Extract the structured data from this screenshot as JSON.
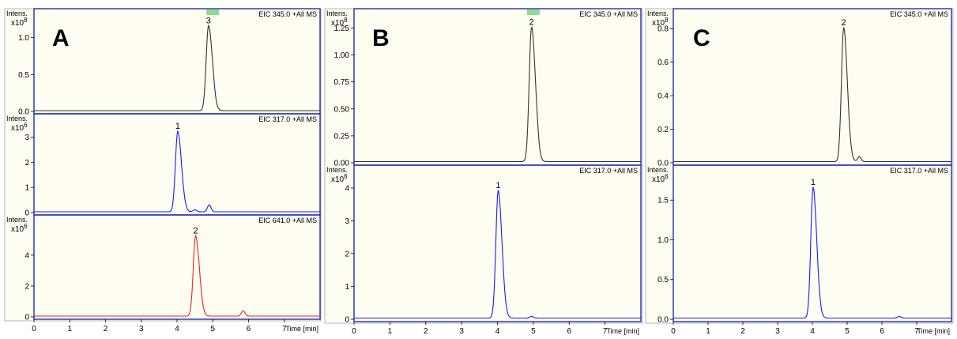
{
  "figure": {
    "background": "#fdfdf1",
    "frame_color": "#1f2db3"
  },
  "panels": [
    {
      "label": "A",
      "x_axis_label": "Time [min]",
      "xlim": [
        0,
        8
      ],
      "x_ticks": [
        0,
        1,
        2,
        3,
        4,
        5,
        6,
        7
      ],
      "marker_color": "#8fdc8f",
      "marker_x": 5.0,
      "traces": [
        {
          "title": "EIC 345.0 +All MS",
          "intensity_label": "Intens.",
          "exponent_base": "x10",
          "exponent_power": "8",
          "color": "#333333",
          "ylim": [
            0,
            1.35
          ],
          "y_ticks": [
            0.0,
            0.5,
            1.0
          ],
          "y_tick_labels": [
            "0.0",
            "0.5",
            "1.0"
          ],
          "peaks": [
            {
              "rt": 4.88,
              "height": 1.15,
              "label": "3"
            }
          ],
          "minor_peaks": [
            {
              "rt": 5.0,
              "height": 0.04
            }
          ]
        },
        {
          "title": "EIC 317.0 +All MS",
          "intensity_label": "Intens.",
          "exponent_base": "x10",
          "exponent_power": "6",
          "color": "#1a1aff",
          "ylim": [
            0,
            3.8
          ],
          "y_ticks": [
            0,
            1,
            2,
            3
          ],
          "y_tick_labels": [
            "0",
            "1",
            "2",
            "3"
          ],
          "peaks": [
            {
              "rt": 4.02,
              "height": 3.2,
              "label": "1"
            }
          ],
          "minor_peaks": [
            {
              "rt": 4.9,
              "height": 0.28
            },
            {
              "rt": 4.5,
              "height": 0.08
            }
          ]
        },
        {
          "title": "EIC 641.0 +All MS",
          "intensity_label": "Intens.",
          "exponent_base": "x10",
          "exponent_power": "6",
          "color": "#ee2222",
          "ylim": [
            0,
            6.4
          ],
          "y_ticks": [
            0,
            2,
            4
          ],
          "y_tick_labels": [
            "0",
            "2",
            "4"
          ],
          "peaks": [
            {
              "rt": 4.52,
              "height": 5.2,
              "label": "2"
            }
          ],
          "minor_peaks": [
            {
              "rt": 5.85,
              "height": 0.35
            }
          ]
        }
      ]
    },
    {
      "label": "B",
      "x_axis_label": "Time [min]",
      "xlim": [
        0,
        8
      ],
      "x_ticks": [
        0,
        1,
        2,
        3,
        4,
        5,
        6,
        7
      ],
      "marker_color": "#8fdc8f",
      "marker_x": 5.0,
      "traces": [
        {
          "title": "EIC 345.0 +All MS",
          "intensity_label": "Intens.",
          "exponent_base": "x10",
          "exponent_power": "8",
          "color": "#333333",
          "ylim": [
            0,
            1.4
          ],
          "y_ticks": [
            0.0,
            0.25,
            0.5,
            0.75,
            1.0,
            1.25
          ],
          "y_tick_labels": [
            "0.00",
            "0.25",
            "0.50",
            "0.75",
            "1.00",
            "1.25"
          ],
          "peaks": [
            {
              "rt": 4.95,
              "height": 1.25,
              "label": "2"
            }
          ],
          "minor_peaks": [
            {
              "rt": 5.1,
              "height": 0.05
            }
          ]
        },
        {
          "title": "EIC 317.0 +All MS",
          "intensity_label": "Intens.",
          "exponent_base": "x10",
          "exponent_power": "6",
          "color": "#1a1aff",
          "ylim": [
            0,
            4.6
          ],
          "y_ticks": [
            0,
            1,
            2,
            3,
            4
          ],
          "y_tick_labels": [
            "0",
            "1",
            "2",
            "3",
            "4"
          ],
          "peaks": [
            {
              "rt": 4.02,
              "height": 3.9,
              "label": "1"
            }
          ],
          "minor_peaks": [
            {
              "rt": 4.95,
              "height": 0.05
            }
          ]
        }
      ]
    },
    {
      "label": "C",
      "x_axis_label": "Time [min]",
      "xlim": [
        0,
        8
      ],
      "x_ticks": [
        0,
        1,
        2,
        3,
        4,
        5,
        6,
        7
      ],
      "marker_color": "",
      "marker_x": null,
      "traces": [
        {
          "title": "EIC 345.0 +All MS",
          "intensity_label": "Intens.",
          "exponent_base": "x10",
          "exponent_power": "8",
          "color": "#333333",
          "ylim": [
            0,
            0.9
          ],
          "y_ticks": [
            0.0,
            0.2,
            0.4,
            0.6,
            0.8
          ],
          "y_tick_labels": [
            "0.0",
            "0.2",
            "0.4",
            "0.6",
            "0.8"
          ],
          "peaks": [
            {
              "rt": 4.9,
              "height": 0.8,
              "label": "2"
            }
          ],
          "minor_peaks": [
            {
              "rt": 5.35,
              "height": 0.03
            }
          ]
        },
        {
          "title": "EIC 317.0 +All MS",
          "intensity_label": "Intens.",
          "exponent_base": "x10",
          "exponent_power": "6",
          "color": "#1a1aff",
          "ylim": [
            0,
            1.9
          ],
          "y_ticks": [
            0.0,
            0.5,
            1.0,
            1.5
          ],
          "y_tick_labels": [
            "0.0",
            "0.5",
            "1.0",
            "1.5"
          ],
          "peaks": [
            {
              "rt": 4.02,
              "height": 1.65,
              "label": "1"
            }
          ],
          "minor_peaks": [
            {
              "rt": 6.5,
              "height": 0.02
            }
          ]
        }
      ]
    }
  ],
  "chart_data": [
    {
      "type": "line",
      "panel": "A",
      "xlabel": "Time [min]",
      "xlim": [
        0,
        8
      ],
      "series": [
        {
          "name": "EIC 345.0 +All MS",
          "units": "x10^8",
          "peak_rt": 4.88,
          "peak_height": 1.15,
          "peak_label": "3"
        },
        {
          "name": "EIC 317.0 +All MS",
          "units": "x10^6",
          "peak_rt": 4.02,
          "peak_height": 3.2,
          "peak_label": "1"
        },
        {
          "name": "EIC 641.0 +All MS",
          "units": "x10^6",
          "peak_rt": 4.52,
          "peak_height": 5.2,
          "peak_label": "2"
        }
      ]
    },
    {
      "type": "line",
      "panel": "B",
      "xlabel": "Time [min]",
      "xlim": [
        0,
        8
      ],
      "series": [
        {
          "name": "EIC 345.0 +All MS",
          "units": "x10^8",
          "peak_rt": 4.95,
          "peak_height": 1.25,
          "peak_label": "2"
        },
        {
          "name": "EIC 317.0 +All MS",
          "units": "x10^6",
          "peak_rt": 4.02,
          "peak_height": 3.9,
          "peak_label": "1"
        }
      ]
    },
    {
      "type": "line",
      "panel": "C",
      "xlabel": "Time [min]",
      "xlim": [
        0,
        8
      ],
      "series": [
        {
          "name": "EIC 345.0 +All MS",
          "units": "x10^8",
          "peak_rt": 4.9,
          "peak_height": 0.8,
          "peak_label": "2"
        },
        {
          "name": "EIC 317.0 +All MS",
          "units": "x10^6",
          "peak_rt": 4.02,
          "peak_height": 1.65,
          "peak_label": "1"
        }
      ]
    }
  ]
}
